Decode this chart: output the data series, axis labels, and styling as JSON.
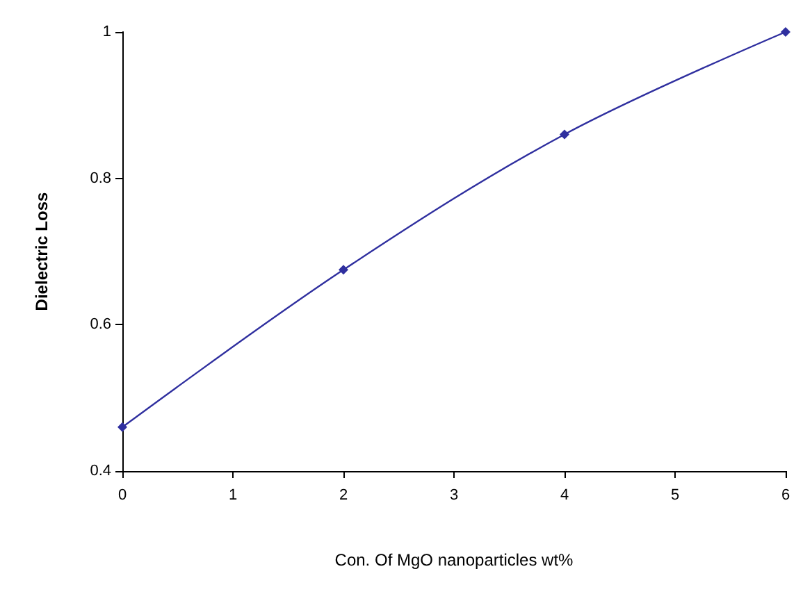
{
  "chart_data": {
    "type": "line",
    "xlabel": "Con. Of MgO nanoparticles wt%",
    "ylabel": "Dielectric Loss",
    "x": [
      0,
      2,
      4,
      6
    ],
    "series": [
      {
        "color": "#2f2f9f",
        "values": [
          0.46,
          0.675,
          0.86,
          1
        ]
      }
    ],
    "xlim": [
      0,
      6
    ],
    "xticks": [
      0,
      1,
      2,
      3,
      4,
      5,
      6
    ],
    "ylim": [
      0.4,
      1
    ],
    "yticks": [
      0.4,
      0.6,
      0.8,
      1
    ],
    "grid": false,
    "marker": "diamond",
    "line_style": "solid"
  }
}
